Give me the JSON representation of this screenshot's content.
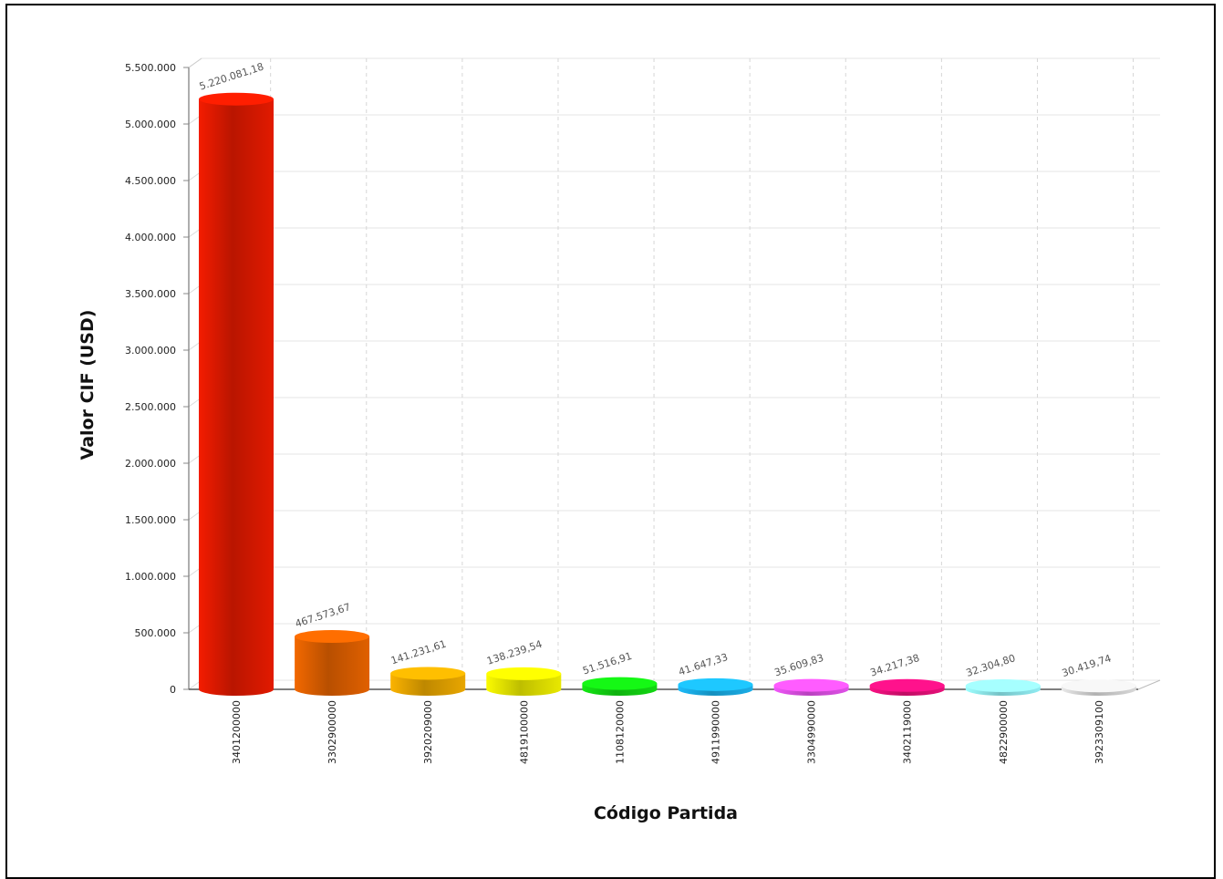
{
  "chart_data": {
    "type": "bar",
    "title": "",
    "xlabel": "Código Partida",
    "ylabel": "Valor CIF (USD)",
    "ylim": [
      0,
      5500000
    ],
    "yticks": [
      0,
      500000,
      1000000,
      1500000,
      2000000,
      2500000,
      3000000,
      3500000,
      4000000,
      4500000,
      5000000,
      5500000
    ],
    "ytick_labels": [
      "0",
      "500.000",
      "1.000.000",
      "1.500.000",
      "2.000.000",
      "2.500.000",
      "3.000.000",
      "3.500.000",
      "4.000.000",
      "4.500.000",
      "5.000.000",
      "5.500.000"
    ],
    "grid": true,
    "categories": [
      "3401200000",
      "3302900000",
      "3920209000",
      "4819100000",
      "1108120000",
      "4911990000",
      "3304990000",
      "3402119000",
      "4822900000",
      "3923309100"
    ],
    "values": [
      5220081.18,
      467573.67,
      141231.61,
      138239.54,
      51516.91,
      41647.33,
      35609.83,
      34217.38,
      32304.8,
      30419.74
    ],
    "value_labels": [
      "5.220.081,18",
      "467.573,67",
      "141.231,61",
      "138.239,54",
      "51.516,91",
      "41.647,33",
      "35.609,83",
      "34.217,38",
      "32.304,80",
      "30.419,74"
    ],
    "colors": [
      "#e21a00",
      "#e06000",
      "#e8a600",
      "#e8e800",
      "#12d812",
      "#1aaee8",
      "#e050e8",
      "#e8107a",
      "#90ecf2",
      "#d8d8d8"
    ]
  }
}
